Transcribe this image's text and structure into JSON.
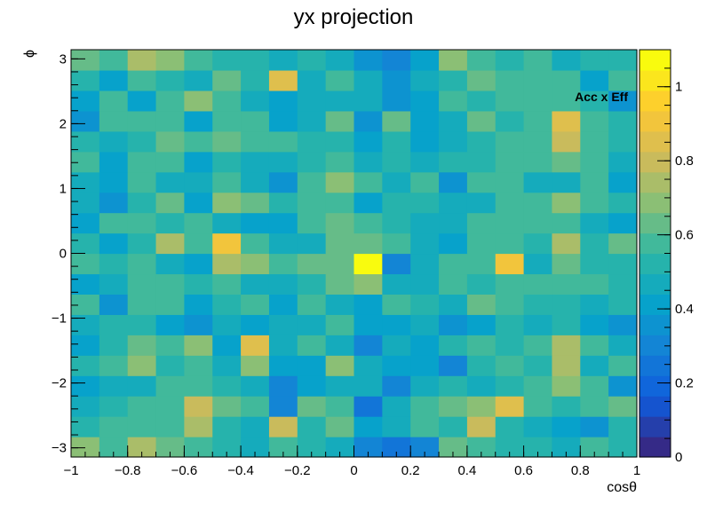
{
  "chart_data": {
    "type": "heatmap",
    "title": "yx projection",
    "xlabel": "cosθ",
    "ylabel": "ϕ",
    "annotation": "Acc x Eff",
    "x_range": [
      -1,
      1
    ],
    "y_range": [
      -3.1416,
      3.1416
    ],
    "z_range": [
      0,
      1.1
    ],
    "x_ticks": [
      -1,
      -0.8,
      -0.6,
      -0.4,
      -0.2,
      0,
      0.2,
      0.4,
      0.6,
      0.8,
      1
    ],
    "x_tick_labels": [
      "−1",
      "−0.8",
      "−0.6",
      "−0.4",
      "−0.2",
      "0",
      "0.2",
      "0.4",
      "0.6",
      "0.8",
      "1"
    ],
    "y_ticks": [
      -3,
      -2,
      -1,
      0,
      1,
      2,
      3
    ],
    "y_tick_labels": [
      "−3",
      "−2",
      "−1",
      "0",
      "1",
      "2",
      "3"
    ],
    "z_ticks": [
      0,
      0.2,
      0.4,
      0.6,
      0.8,
      1
    ],
    "z_tick_labels": [
      "0",
      "0.2",
      "0.4",
      "0.6",
      "0.8",
      "1"
    ],
    "grid": false,
    "colormap": "kBird",
    "nx": 20,
    "ny": 20,
    "z": [
      [
        0.7,
        0.6,
        0.75,
        0.65,
        0.55,
        0.5,
        0.45,
        0.55,
        0.5,
        0.45,
        0.3,
        0.25,
        0.3,
        0.65,
        0.55,
        0.5,
        0.5,
        0.45,
        0.55,
        0.5
      ],
      [
        0.5,
        0.6,
        0.6,
        0.55,
        0.75,
        0.5,
        0.45,
        0.8,
        0.5,
        0.65,
        0.4,
        0.45,
        0.55,
        0.5,
        0.8,
        0.5,
        0.45,
        0.4,
        0.35,
        0.5
      ],
      [
        0.45,
        0.5,
        0.55,
        0.6,
        0.8,
        0.65,
        0.55,
        0.3,
        0.65,
        0.55,
        0.25,
        0.45,
        0.55,
        0.65,
        0.7,
        0.85,
        0.6,
        0.5,
        0.55,
        0.65
      ],
      [
        0.4,
        0.45,
        0.45,
        0.55,
        0.55,
        0.5,
        0.45,
        0.3,
        0.4,
        0.45,
        0.45,
        0.3,
        0.45,
        0.5,
        0.45,
        0.5,
        0.55,
        0.7,
        0.6,
        0.35
      ],
      [
        0.5,
        0.55,
        0.7,
        0.5,
        0.6,
        0.45,
        0.7,
        0.4,
        0.4,
        0.7,
        0.45,
        0.4,
        0.4,
        0.3,
        0.5,
        0.55,
        0.5,
        0.75,
        0.45,
        0.6
      ],
      [
        0.4,
        0.5,
        0.65,
        0.55,
        0.7,
        0.4,
        0.85,
        0.45,
        0.55,
        0.45,
        0.3,
        0.45,
        0.4,
        0.5,
        0.55,
        0.5,
        0.6,
        0.75,
        0.6,
        0.45
      ],
      [
        0.45,
        0.5,
        0.5,
        0.4,
        0.35,
        0.45,
        0.4,
        0.45,
        0.45,
        0.55,
        0.4,
        0.4,
        0.45,
        0.35,
        0.4,
        0.5,
        0.45,
        0.5,
        0.4,
        0.35
      ],
      [
        0.55,
        0.35,
        0.55,
        0.55,
        0.4,
        0.5,
        0.55,
        0.4,
        0.55,
        0.45,
        0.4,
        0.55,
        0.5,
        0.45,
        0.65,
        0.55,
        0.5,
        0.5,
        0.45,
        0.5
      ],
      [
        0.4,
        0.45,
        0.6,
        0.6,
        0.5,
        0.55,
        0.45,
        0.45,
        0.5,
        0.65,
        0.7,
        0.45,
        0.45,
        0.55,
        0.5,
        0.6,
        0.6,
        0.6,
        0.55,
        0.5
      ],
      [
        0.55,
        0.5,
        0.6,
        0.45,
        0.4,
        0.75,
        0.7,
        0.55,
        0.65,
        0.65,
        1.1,
        0.3,
        0.45,
        0.55,
        0.55,
        0.9,
        0.45,
        0.65,
        0.5,
        0.5
      ],
      [
        0.5,
        0.4,
        0.5,
        0.75,
        0.55,
        0.9,
        0.6,
        0.45,
        0.45,
        0.65,
        0.65,
        0.55,
        0.45,
        0.4,
        0.6,
        0.6,
        0.5,
        0.75,
        0.5,
        0.65
      ],
      [
        0.4,
        0.55,
        0.6,
        0.5,
        0.55,
        0.45,
        0.4,
        0.4,
        0.6,
        0.65,
        0.55,
        0.5,
        0.45,
        0.45,
        0.55,
        0.55,
        0.6,
        0.6,
        0.45,
        0.4
      ],
      [
        0.45,
        0.35,
        0.5,
        0.65,
        0.4,
        0.7,
        0.65,
        0.5,
        0.6,
        0.6,
        0.4,
        0.5,
        0.5,
        0.45,
        0.45,
        0.55,
        0.55,
        0.7,
        0.55,
        0.5
      ],
      [
        0.45,
        0.4,
        0.55,
        0.45,
        0.45,
        0.55,
        0.45,
        0.35,
        0.55,
        0.7,
        0.55,
        0.45,
        0.55,
        0.35,
        0.55,
        0.6,
        0.45,
        0.45,
        0.55,
        0.4
      ],
      [
        0.55,
        0.4,
        0.6,
        0.55,
        0.4,
        0.5,
        0.45,
        0.45,
        0.5,
        0.6,
        0.45,
        0.5,
        0.45,
        0.5,
        0.5,
        0.55,
        0.6,
        0.65,
        0.6,
        0.45
      ],
      [
        0.5,
        0.45,
        0.5,
        0.65,
        0.6,
        0.65,
        0.55,
        0.55,
        0.5,
        0.5,
        0.4,
        0.5,
        0.4,
        0.45,
        0.5,
        0.55,
        0.6,
        0.8,
        0.55,
        0.5
      ],
      [
        0.35,
        0.6,
        0.55,
        0.55,
        0.4,
        0.6,
        0.55,
        0.4,
        0.45,
        0.65,
        0.35,
        0.65,
        0.4,
        0.45,
        0.65,
        0.5,
        0.55,
        0.85,
        0.6,
        0.5
      ],
      [
        0.4,
        0.55,
        0.4,
        0.55,
        0.7,
        0.55,
        0.45,
        0.4,
        0.45,
        0.45,
        0.45,
        0.35,
        0.4,
        0.55,
        0.5,
        0.55,
        0.6,
        0.55,
        0.5,
        0.35
      ],
      [
        0.5,
        0.4,
        0.55,
        0.5,
        0.45,
        0.65,
        0.5,
        0.85,
        0.45,
        0.55,
        0.45,
        0.35,
        0.45,
        0.5,
        0.65,
        0.6,
        0.55,
        0.6,
        0.4,
        0.55
      ],
      [
        0.65,
        0.55,
        0.75,
        0.7,
        0.55,
        0.5,
        0.5,
        0.45,
        0.5,
        0.45,
        0.35,
        0.3,
        0.4,
        0.7,
        0.55,
        0.5,
        0.55,
        0.45,
        0.5,
        0.5
      ]
    ]
  },
  "palette": {
    "background": "#ffffff",
    "axis": "#000000",
    "colormap_stops": [
      "#352a87",
      "#0f5cdd",
      "#1481d6",
      "#06a4ca",
      "#2eb7a4",
      "#87bf77",
      "#d1bb59",
      "#fec832",
      "#f9fb0e"
    ]
  }
}
